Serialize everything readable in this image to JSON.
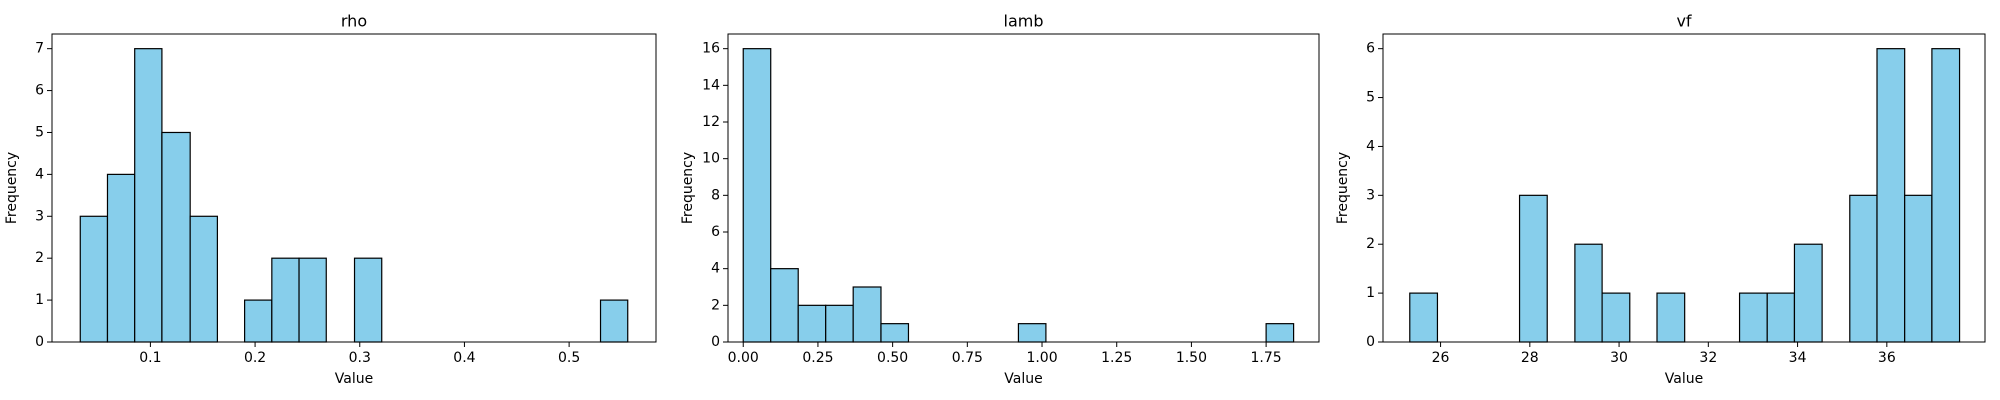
{
  "chart_data": [
    {
      "type": "histogram",
      "title": "rho",
      "xlabel": "Value",
      "ylabel": "Frequency",
      "color": "#87ceeb",
      "edgecolor": "#000000",
      "bins": [
        0.033,
        0.059,
        0.085,
        0.111,
        0.138,
        0.164,
        0.19,
        0.216,
        0.242,
        0.268,
        0.295,
        0.321,
        0.347,
        0.373,
        0.399,
        0.425,
        0.451,
        0.478,
        0.504,
        0.53,
        0.556
      ],
      "values": [
        3,
        4,
        7,
        5,
        3,
        0,
        1,
        2,
        2,
        0,
        2,
        0,
        0,
        0,
        0,
        0,
        0,
        0,
        0,
        1
      ],
      "xlim": [
        0.006,
        0.583
      ],
      "ylim": [
        0,
        7.35
      ],
      "xticks": [
        0.1,
        0.2,
        0.3,
        0.4,
        0.5
      ],
      "yticks": [
        0,
        1,
        2,
        3,
        4,
        5,
        6,
        7
      ]
    },
    {
      "type": "histogram",
      "title": "lamb",
      "xlabel": "Value",
      "ylabel": "Frequency",
      "color": "#87ceeb",
      "edgecolor": "#000000",
      "bins": [
        0,
        0.092,
        0.184,
        0.276,
        0.368,
        0.461,
        0.553,
        0.645,
        0.737,
        0.829,
        0.921,
        1.013,
        1.105,
        1.197,
        1.289,
        1.382,
        1.474,
        1.566,
        1.658,
        1.75,
        1.842
      ],
      "values": [
        16,
        4,
        2,
        2,
        3,
        1,
        0,
        0,
        0,
        0,
        1,
        0,
        0,
        0,
        0,
        0,
        0,
        0,
        0,
        1
      ],
      "xlim": [
        -0.051,
        1.927
      ],
      "ylim": [
        0,
        16.8
      ],
      "xticks": [
        {
          "value": 0,
          "label": "0.00"
        },
        {
          "value": 0.25,
          "label": "0.25"
        },
        {
          "value": 0.5,
          "label": "0.50"
        },
        {
          "value": 0.75,
          "label": "0.75"
        },
        {
          "value": 1,
          "label": "1.00"
        },
        {
          "value": 1.25,
          "label": "1.25"
        },
        {
          "value": 1.5,
          "label": "1.50"
        },
        {
          "value": 1.75,
          "label": "1.75"
        }
      ],
      "yticks": [
        0,
        2,
        4,
        6,
        8,
        10,
        12,
        14,
        16
      ]
    },
    {
      "type": "histogram",
      "title": "vf",
      "xlabel": "Value",
      "ylabel": "Frequency",
      "color": "#87ceeb",
      "edgecolor": "#000000",
      "bins": [
        25.31,
        25.93,
        26.54,
        27.16,
        27.77,
        28.39,
        29.01,
        29.62,
        30.24,
        30.85,
        31.47,
        32.09,
        32.7,
        33.32,
        33.93,
        34.55,
        35.17,
        35.78,
        36.4,
        37.01,
        37.63
      ],
      "values": [
        1,
        0,
        0,
        0,
        3,
        0,
        2,
        1,
        0,
        1,
        0,
        0,
        1,
        1,
        2,
        0,
        3,
        6,
        3,
        6
      ],
      "xlim": [
        24.71,
        38.2
      ],
      "ylim": [
        0,
        6.3
      ],
      "xticks": [
        26,
        28,
        30,
        32,
        34,
        36
      ],
      "yticks": [
        0,
        1,
        2,
        3,
        4,
        5,
        6
      ]
    }
  ]
}
